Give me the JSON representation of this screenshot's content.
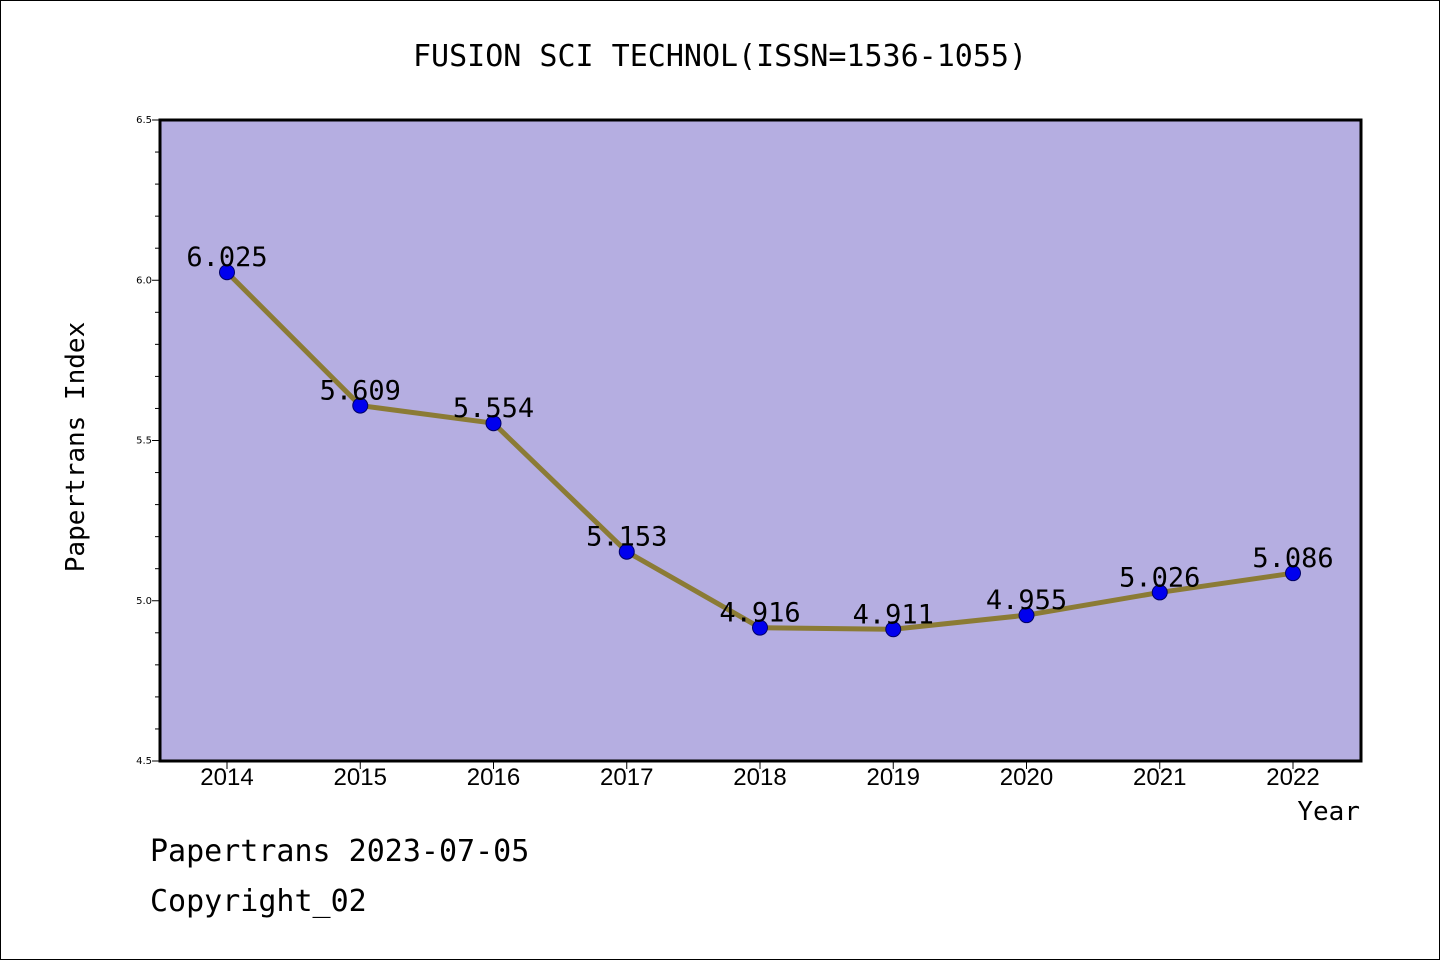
{
  "chart_data": {
    "type": "line",
    "title": "FUSION SCI TECHNOL(ISSN=1536-1055)",
    "xlabel": "Year",
    "ylabel": "Papertrans Index",
    "categories": [
      "2014",
      "2015",
      "2016",
      "2017",
      "2018",
      "2019",
      "2020",
      "2021",
      "2022"
    ],
    "values": [
      6.025,
      5.609,
      5.554,
      5.153,
      4.916,
      4.911,
      4.955,
      5.026,
      5.086
    ],
    "data_labels": [
      "6.025",
      "5.609",
      "5.554",
      "5.153",
      "4.916",
      "4.911",
      "4.955",
      "5.026",
      "5.086"
    ],
    "ylim": [
      4.5,
      6.5
    ],
    "yticks": [
      "4.5",
      "5.0",
      "5.5",
      "6.0",
      "6.5"
    ],
    "grid": false,
    "colors": {
      "plot_background": "#b5aee1",
      "line": "#8b7b35",
      "marker": "#0000ee",
      "marker_edge": "#000066"
    }
  },
  "footer": {
    "line1": "Papertrans 2023-07-05",
    "line2": "Copyright_02"
  }
}
